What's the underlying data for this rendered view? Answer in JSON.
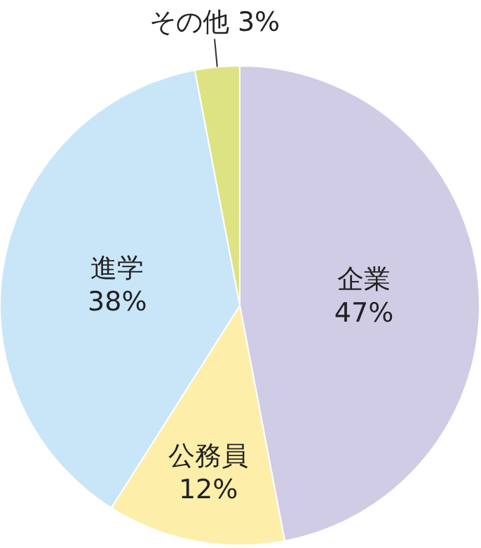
{
  "chart_data": {
    "type": "pie",
    "categories": [
      "企業",
      "公務員",
      "進学",
      "その他"
    ],
    "values": [
      47,
      12,
      38,
      3
    ],
    "value_labels": [
      "47%",
      "12%",
      "38%",
      "3%"
    ],
    "colors": [
      "#d0cce6",
      "#fdeeaa",
      "#c9e6f8",
      "#dde383"
    ]
  }
}
